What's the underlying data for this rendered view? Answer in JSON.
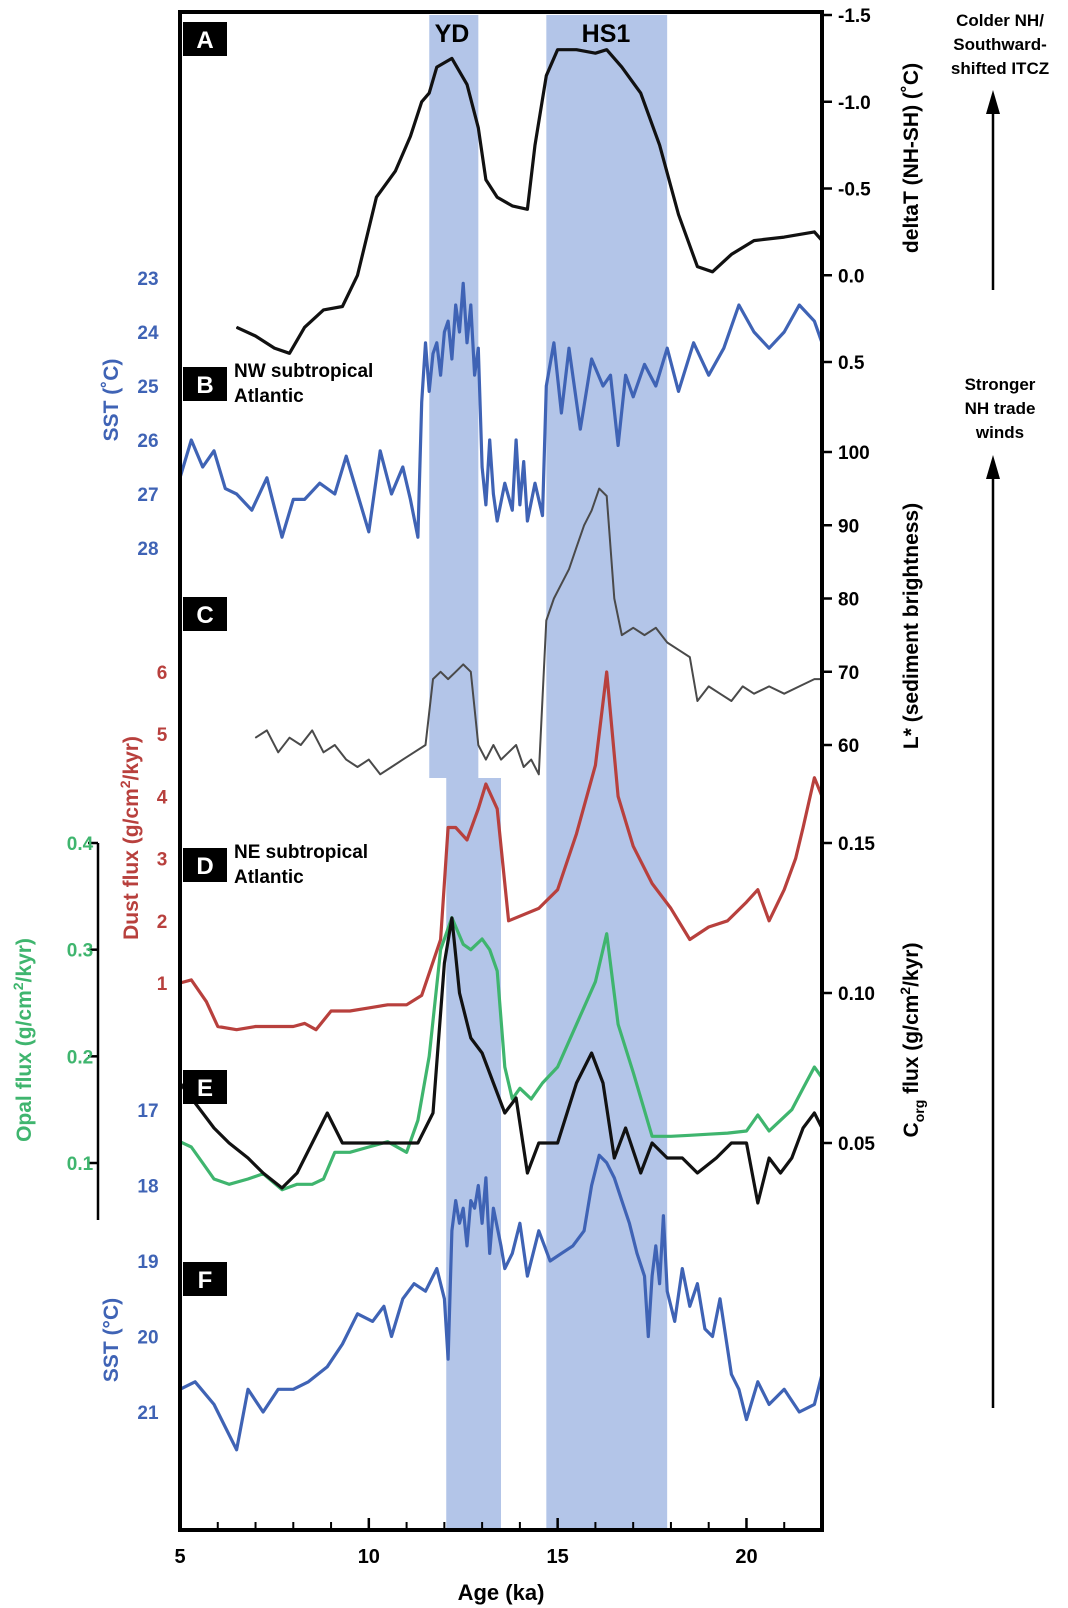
{
  "colors": {
    "blue": "#3f63b5",
    "red": "#b8403d",
    "green": "#3fb56e",
    "grey": "#4a4a4a",
    "black": "#111111",
    "band": "#b3c5e8"
  },
  "chart_data": {
    "type": "line",
    "xlabel": "Age (ka)",
    "xlim": [
      5,
      22
    ],
    "x_ticks": [
      "5",
      "10",
      "15",
      "20"
    ],
    "shaded_intervals": [
      {
        "label": "YD",
        "x_start": 11.6,
        "x_end": 12.9,
        "panels": "A-C"
      },
      {
        "label": "",
        "x_start": 12.05,
        "x_end": 13.5,
        "panels": "D-F"
      },
      {
        "label": "HS1",
        "x_start": 14.7,
        "x_end": 17.9,
        "panels": "all"
      }
    ],
    "panel_letters": [
      "A",
      "B",
      "C",
      "D",
      "E",
      "F"
    ],
    "region_labels": [
      "NW subtropical Atlantic",
      "NE subtropical Atlantic"
    ],
    "annotations": [
      "Colder NH/ Southward- shifted ITCZ",
      "Stronger NH trade winds"
    ],
    "axes": {
      "deltaT": {
        "label": "deltaT (NH-SH) (˚C)",
        "ticks": [
          "-1.5",
          "-1.0",
          "-0.5",
          "0.0",
          "0.5"
        ],
        "inverted": true,
        "side": "right"
      },
      "sst_nw": {
        "label": "SST (˚C)",
        "ticks": [
          "23",
          "24",
          "25",
          "26",
          "27",
          "28"
        ],
        "inverted": true,
        "side": "left"
      },
      "lstar": {
        "label": "L* (sediment brightness)",
        "ticks": [
          "60",
          "70",
          "80",
          "90",
          "100"
        ],
        "side": "right"
      },
      "dust": {
        "label": "Dust flux (g/cm²/kyr)",
        "ticks": [
          "1",
          "2",
          "3",
          "4",
          "5",
          "6"
        ],
        "side": "left"
      },
      "opal": {
        "label": "Opal flux (g/cm²/kyr)",
        "ticks": [
          "0.1",
          "0.2",
          "0.3",
          "0.4"
        ],
        "side": "left"
      },
      "corg": {
        "label": "Corg flux (g/cm²/kyr)",
        "ticks": [
          "0.05",
          "0.10",
          "0.15"
        ],
        "side": "right"
      },
      "sst_ne": {
        "label": "SST (°C)",
        "ticks": [
          "17",
          "18",
          "19",
          "20",
          "21"
        ],
        "inverted": true,
        "side": "left"
      }
    },
    "series": [
      {
        "key": "deltaT",
        "axis": "deltaT",
        "color": "black",
        "x": [
          6.5,
          7.0,
          7.5,
          7.9,
          8.3,
          8.8,
          9.3,
          9.7,
          10.2,
          10.7,
          11.1,
          11.4,
          11.6,
          11.8,
          12.2,
          12.6,
          12.9,
          13.1,
          13.4,
          13.8,
          14.2,
          14.4,
          14.7,
          15.0,
          15.5,
          16.0,
          16.3,
          16.7,
          17.2,
          17.7,
          18.2,
          18.7,
          19.1,
          19.6,
          20.2,
          21.0,
          21.8,
          22.0
        ],
        "y": [
          0.3,
          0.35,
          0.42,
          0.45,
          0.3,
          0.2,
          0.18,
          0.0,
          -0.45,
          -0.6,
          -0.8,
          -1.0,
          -1.05,
          -1.2,
          -1.25,
          -1.1,
          -0.85,
          -0.55,
          -0.45,
          -0.4,
          -0.38,
          -0.75,
          -1.15,
          -1.3,
          -1.3,
          -1.28,
          -1.3,
          -1.2,
          -1.05,
          -0.75,
          -0.35,
          -0.05,
          -0.02,
          -0.12,
          -0.2,
          -0.22,
          -0.25,
          -0.2
        ]
      },
      {
        "key": "sst_nw",
        "axis": "sst_nw",
        "color": "blue",
        "x": [
          5.0,
          5.3,
          5.6,
          5.9,
          6.2,
          6.5,
          6.9,
          7.3,
          7.7,
          8.0,
          8.3,
          8.7,
          9.1,
          9.4,
          9.7,
          10.0,
          10.3,
          10.6,
          10.9,
          11.1,
          11.3,
          11.4,
          11.5,
          11.6,
          11.7,
          11.8,
          11.9,
          12.0,
          12.1,
          12.2,
          12.3,
          12.4,
          12.5,
          12.6,
          12.7,
          12.8,
          12.9,
          13.0,
          13.1,
          13.2,
          13.3,
          13.4,
          13.6,
          13.8,
          13.9,
          14.0,
          14.1,
          14.2,
          14.4,
          14.6,
          14.7,
          14.9,
          15.1,
          15.3,
          15.6,
          15.9,
          16.2,
          16.4,
          16.6,
          16.8,
          17.0,
          17.3,
          17.6,
          17.9,
          18.2,
          18.6,
          19.0,
          19.4,
          19.8,
          20.2,
          20.6,
          21.0,
          21.4,
          21.8,
          22.0
        ],
        "y": [
          26.7,
          26.0,
          26.5,
          26.2,
          26.9,
          27.0,
          27.3,
          26.7,
          27.8,
          27.1,
          27.1,
          26.8,
          27.0,
          26.3,
          27.0,
          27.7,
          26.2,
          27.0,
          26.5,
          27.1,
          27.8,
          25.3,
          24.2,
          25.1,
          24.4,
          24.2,
          24.8,
          24.0,
          23.8,
          24.5,
          23.5,
          24.0,
          23.1,
          24.2,
          23.5,
          24.8,
          24.3,
          26.5,
          27.2,
          26.0,
          27.0,
          27.5,
          26.8,
          27.3,
          26.0,
          27.2,
          26.4,
          27.5,
          26.8,
          27.4,
          25.0,
          24.2,
          25.5,
          24.3,
          25.8,
          24.5,
          25.0,
          24.8,
          26.1,
          24.8,
          25.2,
          24.6,
          25.0,
          24.3,
          25.1,
          24.2,
          24.8,
          24.3,
          23.5,
          24.0,
          24.3,
          24.0,
          23.5,
          23.8,
          24.2
        ]
      },
      {
        "key": "lstar",
        "axis": "lstar",
        "color": "grey",
        "x": [
          7.0,
          7.3,
          7.6,
          7.9,
          8.2,
          8.5,
          8.8,
          9.1,
          9.4,
          9.7,
          10.0,
          10.3,
          10.6,
          10.9,
          11.2,
          11.5,
          11.7,
          11.9,
          12.1,
          12.3,
          12.5,
          12.7,
          12.9,
          13.1,
          13.3,
          13.5,
          13.7,
          13.9,
          14.1,
          14.3,
          14.5,
          14.7,
          14.9,
          15.1,
          15.3,
          15.5,
          15.7,
          15.9,
          16.1,
          16.3,
          16.5,
          16.7,
          17.0,
          17.3,
          17.6,
          17.9,
          18.2,
          18.5,
          18.7,
          19.0,
          19.3,
          19.6,
          19.9,
          20.2,
          20.6,
          21.0,
          21.4,
          21.8,
          22.0
        ],
        "y": [
          61,
          62,
          59,
          61,
          60,
          62,
          59,
          60,
          58,
          57,
          58,
          56,
          57,
          58,
          59,
          60,
          69,
          70,
          69,
          70,
          71,
          70,
          60,
          58,
          60,
          58,
          59,
          60,
          57,
          58,
          56,
          77,
          80,
          82,
          84,
          87,
          90,
          92,
          95,
          94,
          80,
          75,
          76,
          75,
          76,
          74,
          73,
          72,
          66,
          68,
          67,
          66,
          68,
          67,
          68,
          67,
          68,
          69,
          69
        ]
      },
      {
        "key": "dust",
        "axis": "dust",
        "color": "red",
        "x": [
          5.0,
          5.3,
          5.7,
          6.0,
          6.5,
          7.0,
          7.5,
          8.0,
          8.3,
          8.6,
          9.0,
          9.5,
          10.0,
          10.5,
          11.0,
          11.4,
          11.9,
          12.1,
          12.3,
          12.6,
          12.9,
          13.1,
          13.4,
          13.7,
          14.5,
          15.0,
          15.5,
          16.0,
          16.3,
          16.6,
          17.0,
          17.5,
          18.0,
          18.5,
          19.0,
          19.5,
          20.0,
          20.3,
          20.6,
          21.0,
          21.3,
          21.5,
          21.8,
          22.0
        ],
        "y": [
          1.0,
          1.05,
          0.7,
          0.3,
          0.25,
          0.3,
          0.3,
          0.3,
          0.35,
          0.25,
          0.55,
          0.55,
          0.6,
          0.65,
          0.65,
          0.8,
          1.7,
          3.5,
          3.5,
          3.3,
          3.8,
          4.2,
          3.8,
          2.0,
          2.2,
          2.5,
          3.4,
          4.5,
          6.0,
          4.0,
          3.2,
          2.6,
          2.2,
          1.7,
          1.9,
          2.0,
          2.3,
          2.5,
          2.0,
          2.5,
          3.0,
          3.5,
          4.3,
          4.0
        ]
      },
      {
        "key": "opal",
        "axis": "opal",
        "color": "green",
        "x": [
          5.0,
          5.3,
          5.6,
          5.9,
          6.3,
          6.8,
          7.2,
          7.7,
          8.1,
          8.5,
          8.8,
          9.1,
          9.5,
          10.0,
          10.5,
          11.0,
          11.3,
          11.6,
          11.9,
          12.2,
          12.5,
          12.7,
          13.0,
          13.2,
          13.4,
          13.6,
          13.8,
          14.0,
          14.3,
          14.6,
          15.0,
          15.5,
          16.0,
          16.3,
          16.6,
          17.0,
          17.5,
          18.0,
          18.5,
          19.0,
          19.5,
          20.0,
          20.3,
          20.6,
          20.9,
          21.2,
          21.5,
          21.8,
          22.0
        ],
        "y": [
          0.12,
          0.115,
          0.1,
          0.085,
          0.08,
          0.085,
          0.09,
          0.075,
          0.08,
          0.08,
          0.085,
          0.11,
          0.11,
          0.115,
          0.12,
          0.11,
          0.14,
          0.2,
          0.3,
          0.33,
          0.305,
          0.3,
          0.31,
          0.3,
          0.28,
          0.19,
          0.16,
          0.17,
          0.16,
          0.175,
          0.19,
          0.23,
          0.27,
          0.315,
          0.23,
          0.185,
          0.125,
          0.125,
          0.126,
          0.127,
          0.128,
          0.13,
          0.145,
          0.13,
          0.14,
          0.15,
          0.17,
          0.19,
          0.18
        ]
      },
      {
        "key": "corg",
        "axis": "corg",
        "color": "black",
        "x": [
          5.0,
          5.3,
          5.6,
          5.9,
          6.3,
          6.8,
          7.2,
          7.7,
          8.1,
          8.5,
          8.9,
          9.3,
          9.7,
          10.2,
          10.7,
          11.3,
          11.7,
          12.0,
          12.2,
          12.4,
          12.7,
          13.0,
          13.3,
          13.6,
          13.9,
          14.2,
          14.5,
          15.0,
          15.5,
          15.9,
          16.2,
          16.5,
          16.8,
          17.2,
          17.5,
          17.9,
          18.3,
          18.7,
          19.2,
          19.6,
          20.0,
          20.3,
          20.6,
          20.9,
          21.2,
          21.5,
          21.8,
          22.0
        ],
        "y": [
          0.07,
          0.065,
          0.06,
          0.055,
          0.05,
          0.045,
          0.04,
          0.035,
          0.04,
          0.05,
          0.06,
          0.05,
          0.05,
          0.05,
          0.05,
          0.05,
          0.06,
          0.11,
          0.125,
          0.1,
          0.085,
          0.08,
          0.07,
          0.06,
          0.065,
          0.04,
          0.05,
          0.05,
          0.07,
          0.08,
          0.07,
          0.045,
          0.055,
          0.04,
          0.05,
          0.045,
          0.045,
          0.04,
          0.045,
          0.05,
          0.05,
          0.03,
          0.045,
          0.04,
          0.045,
          0.055,
          0.06,
          0.055
        ]
      },
      {
        "key": "sst_ne",
        "axis": "sst_ne",
        "color": "blue",
        "x": [
          5.0,
          5.4,
          5.9,
          6.2,
          6.5,
          6.8,
          7.2,
          7.6,
          8.0,
          8.4,
          8.9,
          9.3,
          9.7,
          10.1,
          10.4,
          10.6,
          10.9,
          11.2,
          11.5,
          11.8,
          12.0,
          12.1,
          12.2,
          12.3,
          12.4,
          12.5,
          12.6,
          12.7,
          12.8,
          12.9,
          13.0,
          13.1,
          13.2,
          13.3,
          13.5,
          13.6,
          13.8,
          14.0,
          14.2,
          14.5,
          14.8,
          15.1,
          15.4,
          15.7,
          15.9,
          16.1,
          16.3,
          16.5,
          16.7,
          16.9,
          17.1,
          17.3,
          17.4,
          17.5,
          17.6,
          17.7,
          17.8,
          17.9,
          18.1,
          18.3,
          18.5,
          18.7,
          18.9,
          19.1,
          19.3,
          19.6,
          19.8,
          20.0,
          20.3,
          20.6,
          21.0,
          21.4,
          21.8,
          22.0
        ],
        "y": [
          20.7,
          20.6,
          20.9,
          21.2,
          21.5,
          20.7,
          21.0,
          20.7,
          20.7,
          20.6,
          20.4,
          20.1,
          19.7,
          19.8,
          19.6,
          20.0,
          19.5,
          19.3,
          19.4,
          19.1,
          19.5,
          20.3,
          18.6,
          18.2,
          18.5,
          18.3,
          18.8,
          18.2,
          18.3,
          18.0,
          18.5,
          17.9,
          18.9,
          18.3,
          18.8,
          19.1,
          18.9,
          18.5,
          19.2,
          18.6,
          19.0,
          18.9,
          18.8,
          18.6,
          18.0,
          17.6,
          17.7,
          17.9,
          18.2,
          18.5,
          18.9,
          19.2,
          20.0,
          19.2,
          18.8,
          19.3,
          18.4,
          19.4,
          19.8,
          19.1,
          19.6,
          19.3,
          19.9,
          20.0,
          19.5,
          20.5,
          20.7,
          21.1,
          20.6,
          20.9,
          20.7,
          21.0,
          20.9,
          20.5
        ]
      }
    ]
  }
}
